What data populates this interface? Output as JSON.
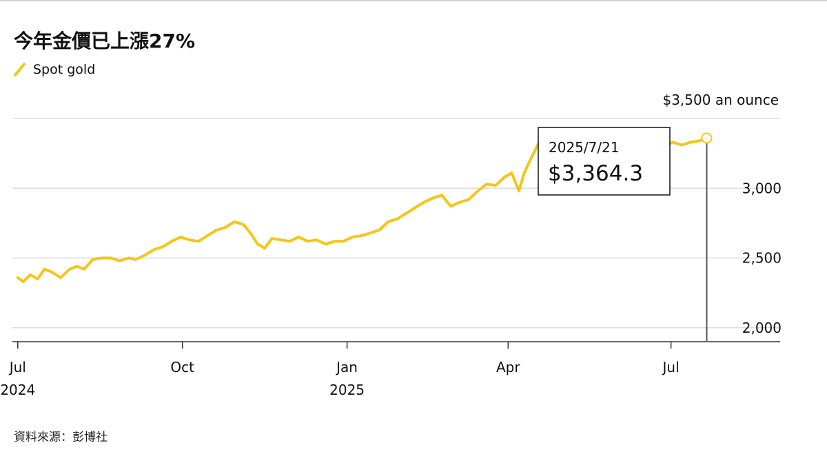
{
  "header": {
    "title": "今年金價已上漲27%"
  },
  "legend": {
    "label": "Spot gold",
    "color": "#f5c518"
  },
  "source": "資料來源：彭博社",
  "tooltip": {
    "date": "2025/7/21",
    "value": "$3,364.3"
  },
  "chart_data": {
    "type": "line",
    "title": "今年金價已上漲27%",
    "unit_label": "$3,500 an ounce",
    "ylim": [
      1900,
      3500
    ],
    "yticks": [
      {
        "value": 3000,
        "label": "3,000"
      },
      {
        "value": 2500,
        "label": "2,500"
      },
      {
        "value": 2000,
        "label": "2,000"
      }
    ],
    "xlim": [
      "2024-06-28",
      "2025-08-31"
    ],
    "xticks": [
      {
        "date": "2024-07-01",
        "label": "Jul",
        "sublabel": "2024"
      },
      {
        "date": "2024-10-01",
        "label": "Oct",
        "sublabel": ""
      },
      {
        "date": "2025-01-01",
        "label": "Jan",
        "sublabel": "2025"
      },
      {
        "date": "2025-04-01",
        "label": "Apr",
        "sublabel": ""
      },
      {
        "date": "2025-07-01",
        "label": "Jul",
        "sublabel": ""
      }
    ],
    "grid": true,
    "series": [
      {
        "name": "Spot gold",
        "color": "#f5c518",
        "x": [
          "2024-07-01",
          "2024-07-04",
          "2024-07-08",
          "2024-07-12",
          "2024-07-16",
          "2024-07-20",
          "2024-07-25",
          "2024-07-30",
          "2024-08-03",
          "2024-08-07",
          "2024-08-12",
          "2024-08-17",
          "2024-08-22",
          "2024-08-27",
          "2024-09-01",
          "2024-09-05",
          "2024-09-10",
          "2024-09-15",
          "2024-09-20",
          "2024-09-25",
          "2024-09-30",
          "2024-10-05",
          "2024-10-10",
          "2024-10-15",
          "2024-10-20",
          "2024-10-25",
          "2024-10-30",
          "2024-11-04",
          "2024-11-08",
          "2024-11-12",
          "2024-11-16",
          "2024-11-20",
          "2024-11-25",
          "2024-11-30",
          "2024-12-05",
          "2024-12-10",
          "2024-12-15",
          "2024-12-20",
          "2024-12-25",
          "2024-12-30",
          "2025-01-04",
          "2025-01-09",
          "2025-01-14",
          "2025-01-19",
          "2025-01-24",
          "2025-01-29",
          "2025-02-03",
          "2025-02-08",
          "2025-02-13",
          "2025-02-18",
          "2025-02-23",
          "2025-02-28",
          "2025-03-05",
          "2025-03-10",
          "2025-03-15",
          "2025-03-20",
          "2025-03-25",
          "2025-03-30",
          "2025-04-03",
          "2025-04-07",
          "2025-04-10",
          "2025-04-14",
          "2025-04-18",
          "2025-04-22",
          "2025-04-25",
          "2025-04-29",
          "2025-05-03",
          "2025-05-08",
          "2025-05-13",
          "2025-05-18",
          "2025-05-23",
          "2025-05-28",
          "2025-06-02",
          "2025-06-07",
          "2025-06-12",
          "2025-06-17",
          "2025-06-22",
          "2025-06-27",
          "2025-07-02",
          "2025-07-07",
          "2025-07-12",
          "2025-07-17",
          "2025-07-21"
        ],
        "values": [
          2360,
          2330,
          2380,
          2350,
          2420,
          2400,
          2360,
          2420,
          2440,
          2420,
          2490,
          2500,
          2500,
          2480,
          2500,
          2490,
          2520,
          2560,
          2580,
          2620,
          2650,
          2630,
          2620,
          2660,
          2700,
          2720,
          2760,
          2740,
          2680,
          2600,
          2570,
          2640,
          2630,
          2620,
          2650,
          2620,
          2630,
          2600,
          2620,
          2620,
          2650,
          2660,
          2680,
          2700,
          2760,
          2780,
          2820,
          2860,
          2900,
          2930,
          2950,
          2870,
          2900,
          2920,
          2980,
          3030,
          3020,
          3080,
          3110,
          2980,
          3110,
          3220,
          3320,
          3420,
          3330,
          3280,
          3260,
          3300,
          3230,
          3330,
          3300,
          3320,
          3340,
          3370,
          3310,
          3380,
          3350,
          3300,
          3330,
          3310,
          3330,
          3340,
          3360
        ]
      }
    ]
  }
}
